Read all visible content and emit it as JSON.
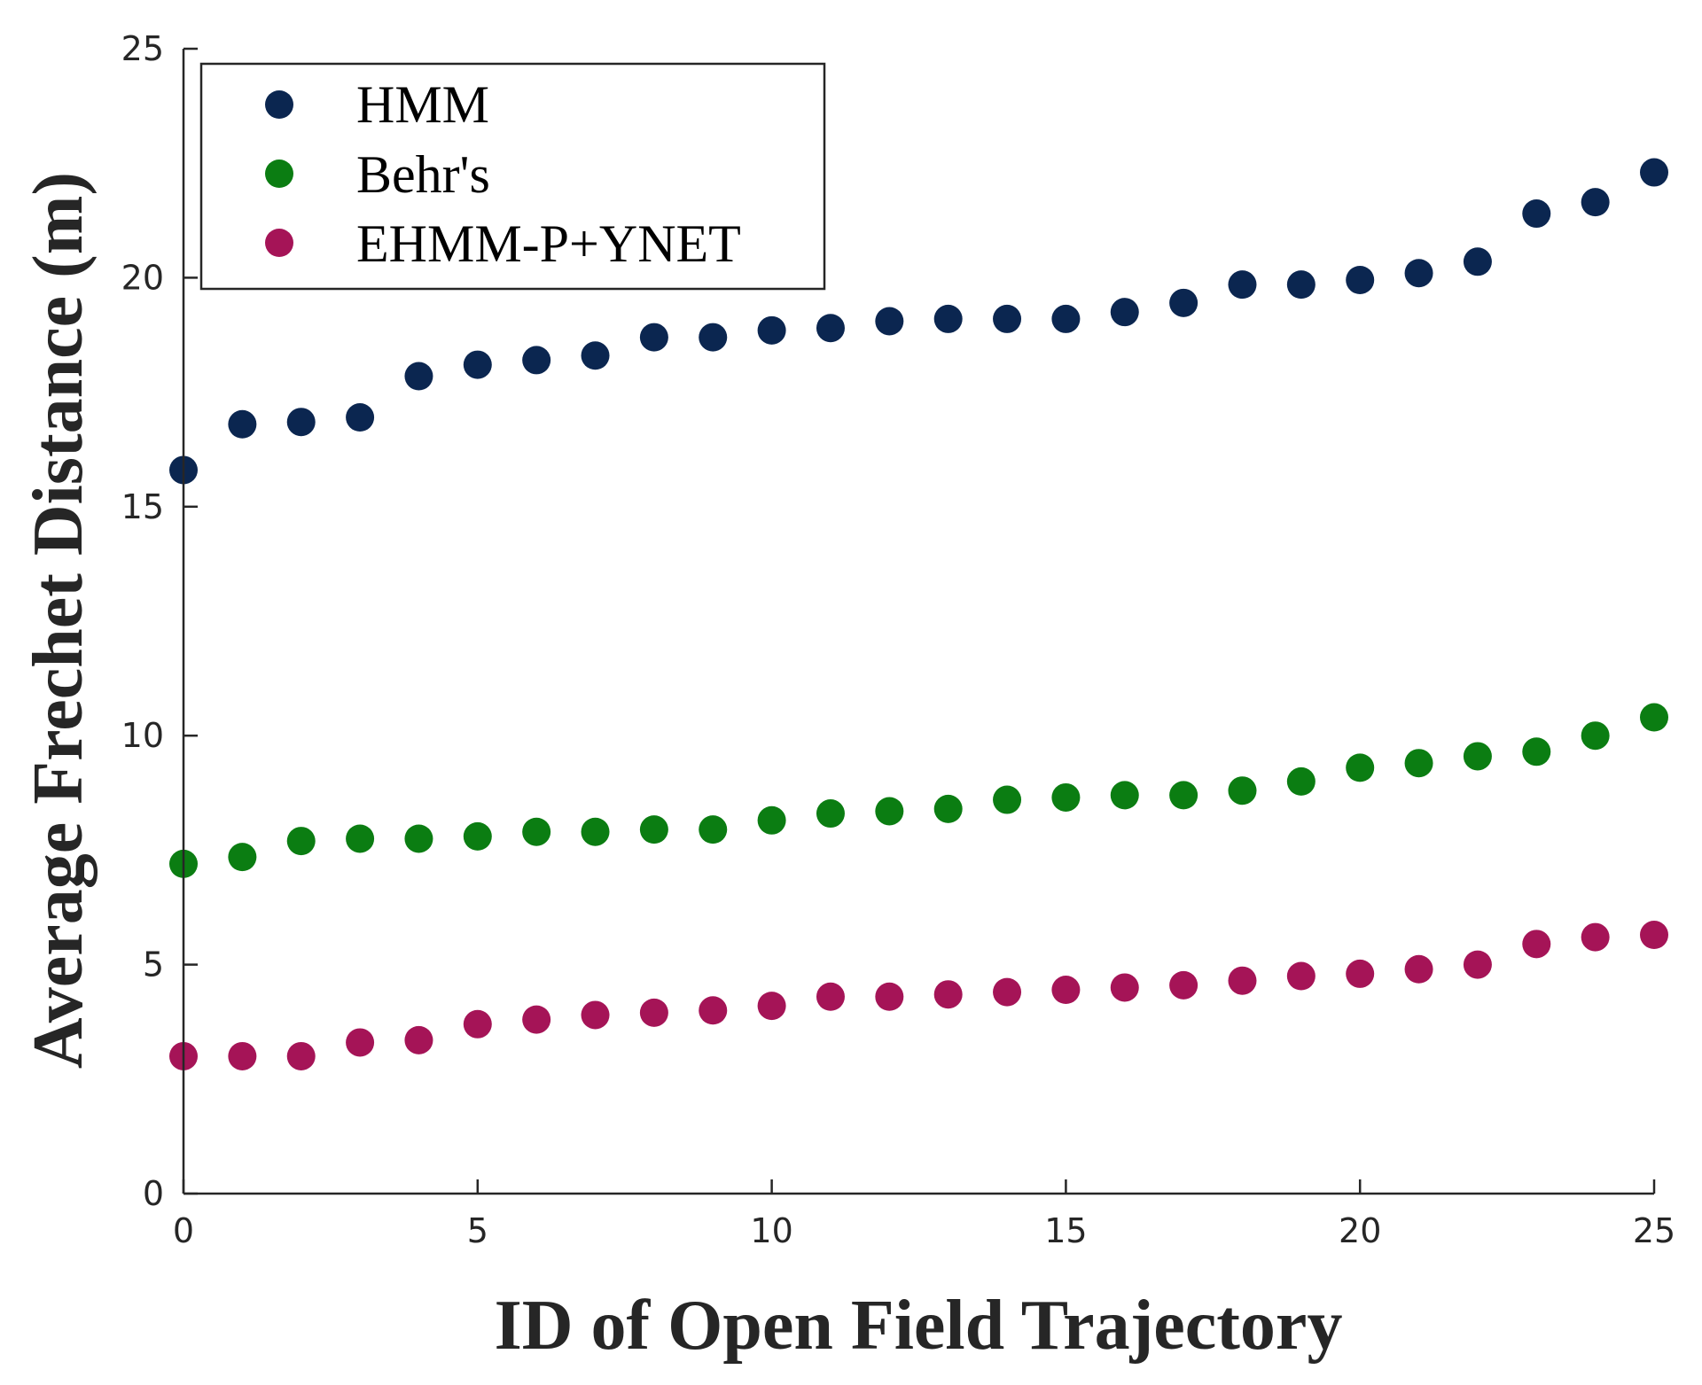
{
  "chart_data": {
    "type": "scatter",
    "title": "",
    "xlabel": "ID of Open Field Trajectory",
    "ylabel": "Average Frechet Distance (m)",
    "xlim": [
      0,
      25
    ],
    "ylim": [
      0,
      25
    ],
    "xticks": [
      0,
      5,
      10,
      15,
      20,
      25
    ],
    "yticks": [
      0,
      5,
      10,
      15,
      20,
      25
    ],
    "grid": false,
    "legend_position": "top-left",
    "x": [
      0,
      1,
      2,
      3,
      4,
      5,
      6,
      7,
      8,
      9,
      10,
      11,
      12,
      13,
      14,
      15,
      16,
      17,
      18,
      19,
      20,
      21,
      22,
      23,
      24,
      25
    ],
    "series": [
      {
        "name": "HMM",
        "color": "#0b2650",
        "values": [
          15.8,
          16.8,
          16.85,
          16.95,
          17.85,
          18.1,
          18.2,
          18.3,
          18.7,
          18.7,
          18.85,
          18.9,
          19.05,
          19.1,
          19.1,
          19.1,
          19.25,
          19.45,
          19.85,
          19.85,
          19.95,
          20.1,
          20.35,
          21.4,
          21.65,
          22.3
        ]
      },
      {
        "name": "Behr's",
        "color": "#0b7d12",
        "values": [
          7.2,
          7.35,
          7.7,
          7.75,
          7.75,
          7.8,
          7.9,
          7.9,
          7.95,
          7.95,
          8.15,
          8.3,
          8.35,
          8.4,
          8.6,
          8.65,
          8.7,
          8.7,
          8.8,
          9.0,
          9.3,
          9.4,
          9.55,
          9.65,
          10.0,
          10.4
        ]
      },
      {
        "name": "EHMM-P+YNET",
        "color": "#a51457",
        "values": [
          3.0,
          3.0,
          3.0,
          3.3,
          3.35,
          3.7,
          3.8,
          3.9,
          3.95,
          4.0,
          4.1,
          4.3,
          4.3,
          4.35,
          4.4,
          4.45,
          4.5,
          4.55,
          4.65,
          4.75,
          4.8,
          4.9,
          5.0,
          5.45,
          5.6,
          5.65
        ]
      }
    ]
  }
}
